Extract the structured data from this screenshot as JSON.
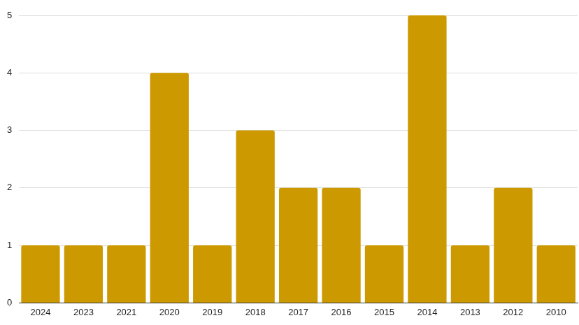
{
  "chart_data": {
    "type": "bar",
    "categories": [
      "2024",
      "2023",
      "2021",
      "2020",
      "2019",
      "2018",
      "2017",
      "2016",
      "2015",
      "2014",
      "2013",
      "2012",
      "2010"
    ],
    "values": [
      1,
      1,
      1,
      4,
      1,
      3,
      2,
      2,
      1,
      5,
      1,
      2,
      1
    ],
    "color": "#cc9a00",
    "ylim": [
      0,
      5
    ],
    "yticks": [
      0,
      1,
      2,
      3,
      4,
      5
    ],
    "grid": true
  }
}
